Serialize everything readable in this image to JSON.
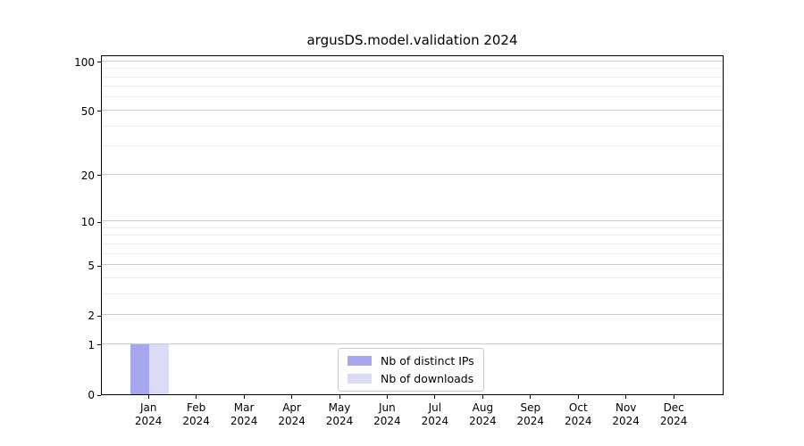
{
  "chart_data": {
    "type": "bar",
    "title": "argusDS.model.validation 2024",
    "categories": [
      {
        "label": "Jan",
        "sub": "2024"
      },
      {
        "label": "Feb",
        "sub": "2024"
      },
      {
        "label": "Mar",
        "sub": "2024"
      },
      {
        "label": "Apr",
        "sub": "2024"
      },
      {
        "label": "May",
        "sub": "2024"
      },
      {
        "label": "Jun",
        "sub": "2024"
      },
      {
        "label": "Jul",
        "sub": "2024"
      },
      {
        "label": "Aug",
        "sub": "2024"
      },
      {
        "label": "Sep",
        "sub": "2024"
      },
      {
        "label": "Oct",
        "sub": "2024"
      },
      {
        "label": "Nov",
        "sub": "2024"
      },
      {
        "label": "Dec",
        "sub": "2024"
      }
    ],
    "series": [
      {
        "name": "Nb of distinct IPs",
        "color": "#a7a7f0",
        "values": [
          1,
          0,
          0,
          0,
          0,
          0,
          0,
          0,
          0,
          0,
          0,
          0
        ]
      },
      {
        "name": "Nb of downloads",
        "color": "#dbdbf8",
        "values": [
          1,
          0,
          0,
          0,
          0,
          0,
          0,
          0,
          0,
          0,
          0,
          0
        ]
      }
    ],
    "yscale": "log1p",
    "ylim": [
      0,
      110
    ],
    "yticks": [
      0,
      1,
      2,
      5,
      10,
      20,
      50,
      100
    ],
    "yticks_minor": [
      3,
      4,
      6,
      7,
      8,
      9,
      30,
      40,
      60,
      70,
      80,
      90
    ],
    "grid": true,
    "legend_position": "inside-bottom-center"
  }
}
